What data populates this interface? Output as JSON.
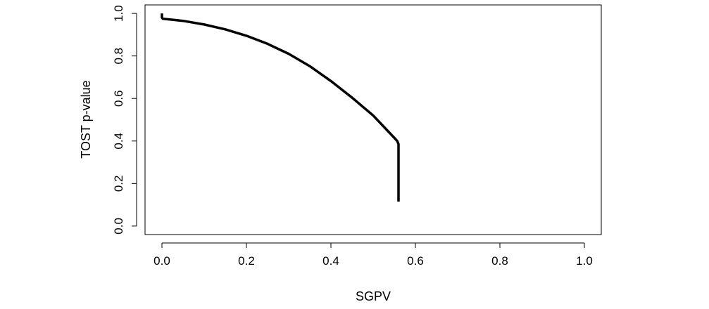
{
  "chart_data": {
    "type": "line",
    "title": "",
    "xlabel": "SGPV",
    "ylabel": "TOST p-value",
    "xlim": [
      -0.04,
      1.04
    ],
    "ylim": [
      -0.04,
      1.04
    ],
    "x_ticks": [
      "0.0",
      "0.2",
      "0.4",
      "0.6",
      "0.8",
      "1.0"
    ],
    "y_ticks": [
      "0.0",
      "0.2",
      "0.4",
      "0.6",
      "0.8",
      "1.0"
    ],
    "grid": false,
    "legend": "none",
    "series": [
      {
        "color": "#000000",
        "x": [
          0.0,
          0.0,
          0.002,
          0.05,
          0.1,
          0.15,
          0.2,
          0.25,
          0.3,
          0.35,
          0.4,
          0.45,
          0.5,
          0.55,
          0.557,
          0.56,
          0.56
        ],
        "y": [
          1.0,
          0.98,
          0.975,
          0.965,
          0.948,
          0.925,
          0.895,
          0.857,
          0.81,
          0.752,
          0.682,
          0.604,
          0.52,
          0.415,
          0.4,
          0.385,
          0.115
        ]
      }
    ]
  }
}
